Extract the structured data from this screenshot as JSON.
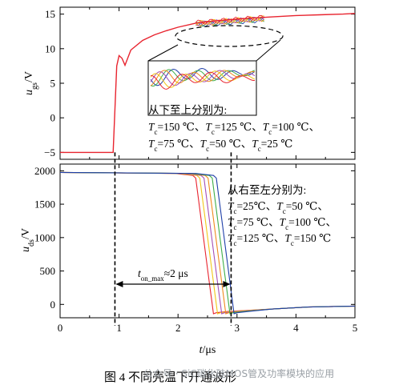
{
  "caption": "图 4   不同壳温下开通波形",
  "watermark": "公众号 · SiC碳化硅MOS管及功率模块的应用",
  "chart_data": [
    {
      "type": "line",
      "panel": "top",
      "ylabel": "u_gs/V",
      "ylim": [
        -6,
        16
      ],
      "xlim": [
        0,
        5
      ],
      "yticks": [
        -5,
        0,
        5,
        10,
        15
      ],
      "yticklabels": [
        "−5",
        "0",
        "5",
        "10",
        "15"
      ],
      "grid": false,
      "legend": "none",
      "annotation_lines": [
        "从下至上分别为:",
        "Tc=150 ℃、Tc=125 ℃、Tc=100 ℃、",
        "Tc=75 ℃、Tc=50 ℃、Tc=25 ℃"
      ],
      "series": [
        {
          "color": "#e8242f",
          "values_x": [
            0,
            0.9,
            0.96,
            1.0,
            1.05,
            1.1,
            1.2,
            1.4,
            1.6,
            1.8,
            2.0,
            2.3,
            2.6,
            2.9,
            3.2,
            3.6,
            4.0,
            4.4,
            4.8,
            5.0
          ],
          "values_y": [
            -5,
            -5,
            7.5,
            9.0,
            8.6,
            7.6,
            9.8,
            11.2,
            12.0,
            12.6,
            13.1,
            13.7,
            14.0,
            14.2,
            14.4,
            14.6,
            14.8,
            14.9,
            15.0,
            15.1
          ]
        }
      ]
    },
    {
      "type": "line",
      "panel": "bottom",
      "ylabel": "u_ds/V",
      "xlabel": "t/μs",
      "xlim": [
        0,
        5
      ],
      "ylim": [
        -200,
        2100
      ],
      "xticks": [
        0,
        1,
        2,
        3,
        4,
        5
      ],
      "xticklabels": [
        "0",
        "1",
        "2",
        "3",
        "4",
        "5"
      ],
      "yticks": [
        0,
        500,
        1000,
        1500,
        2000
      ],
      "yticklabels": [
        "0",
        "500",
        "1000",
        "1500",
        "2000"
      ],
      "grid": false,
      "legend": "none",
      "annotation_lines": [
        "从右至左分别为:",
        "Tc=25℃、Tc=50 ℃、",
        "Tc=75 ℃、Tc=100 ℃、",
        "Tc=125 ℃、Tc=150 ℃"
      ],
      "ton_label": "t_on_max≈2 μs",
      "markers_x": [
        0.93,
        2.9
      ],
      "series": [
        {
          "name": "Tc=25 ℃",
          "color": "#1f3fa8",
          "fall_start": 2.65,
          "fall_end": 2.95
        },
        {
          "name": "Tc=50 ℃",
          "color": "#3fae49",
          "fall_start": 2.58,
          "fall_end": 2.88
        },
        {
          "name": "Tc=75 ℃",
          "color": "#f08a1d",
          "fall_start": 2.51,
          "fall_end": 2.81
        },
        {
          "name": "Tc=100 ℃",
          "color": "#a54fb5",
          "fall_start": 2.44,
          "fall_end": 2.74
        },
        {
          "name": "Tc=125 ℃",
          "color": "#f2c619",
          "fall_start": 2.37,
          "fall_end": 2.67
        },
        {
          "name": "Tc=150 ℃",
          "color": "#e8242f",
          "fall_start": 2.3,
          "fall_end": 2.6
        }
      ]
    }
  ]
}
